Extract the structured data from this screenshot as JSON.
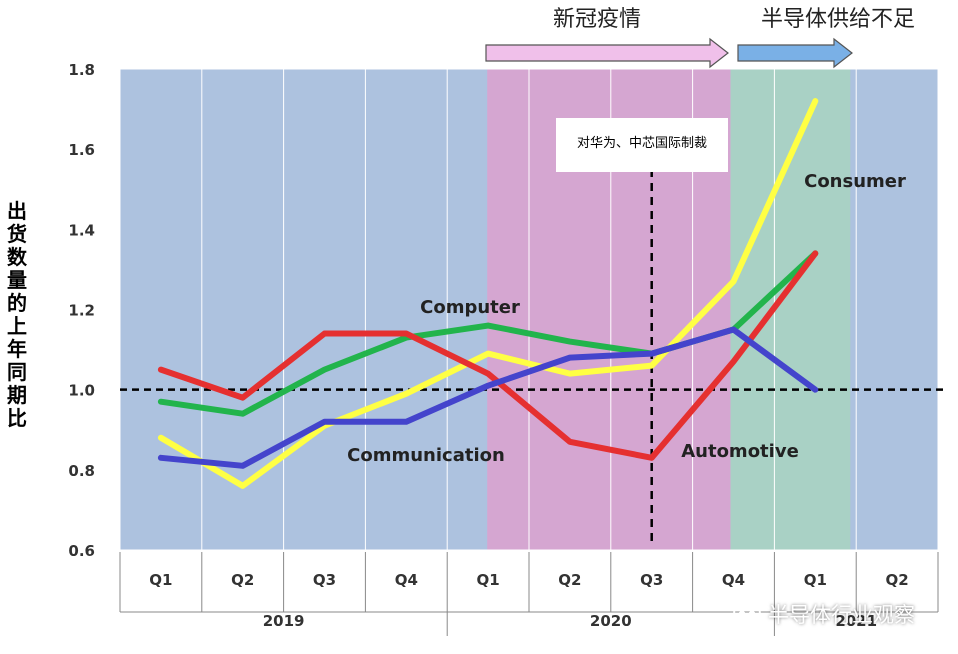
{
  "chart_data": {
    "type": "line",
    "ylabel": "出货数量的上年同期比",
    "ylim": [
      0.6,
      1.8
    ],
    "yticks": [
      "0.6",
      "0.8",
      "1.0",
      "1.2",
      "1.4",
      "1.6",
      "1.8"
    ],
    "reference_line": 1.0,
    "categories": [
      "Q1",
      "Q2",
      "Q3",
      "Q4",
      "Q1",
      "Q2",
      "Q3",
      "Q4",
      "Q1",
      "Q2"
    ],
    "years": [
      "2019",
      "2020",
      "2021"
    ],
    "periods": [
      {
        "label": "新冠疫情",
        "from_quarter": "2020 Q1",
        "to_quarter": "2020 Q4",
        "color": "#d9a3cf"
      },
      {
        "label": "半导体供给不足",
        "from_quarter": "2020 Q4",
        "to_quarter": "2021 Q1",
        "color": "#a8d3c2"
      }
    ],
    "event_marker": {
      "label": "对华为、中芯国际制裁",
      "quarter": "2020 Q3"
    },
    "series": [
      {
        "name": "Consumer",
        "color": "#ffff44",
        "values": [
          0.88,
          0.76,
          0.91,
          0.99,
          1.09,
          1.04,
          1.06,
          1.27,
          1.72,
          null
        ]
      },
      {
        "name": "Computer",
        "color": "#22b44c",
        "values": [
          0.97,
          0.94,
          1.05,
          1.13,
          1.16,
          1.12,
          1.09,
          1.15,
          1.34,
          null
        ]
      },
      {
        "name": "Automotive",
        "color": "#e53030",
        "values": [
          1.05,
          0.98,
          1.14,
          1.14,
          1.04,
          0.87,
          0.83,
          1.07,
          1.34,
          null
        ]
      },
      {
        "name": "Communication",
        "color": "#4444cc",
        "values": [
          0.83,
          0.81,
          0.92,
          0.92,
          1.01,
          1.08,
          1.09,
          1.15,
          1.0,
          null
        ]
      }
    ]
  },
  "watermark": "半导体行业观察"
}
